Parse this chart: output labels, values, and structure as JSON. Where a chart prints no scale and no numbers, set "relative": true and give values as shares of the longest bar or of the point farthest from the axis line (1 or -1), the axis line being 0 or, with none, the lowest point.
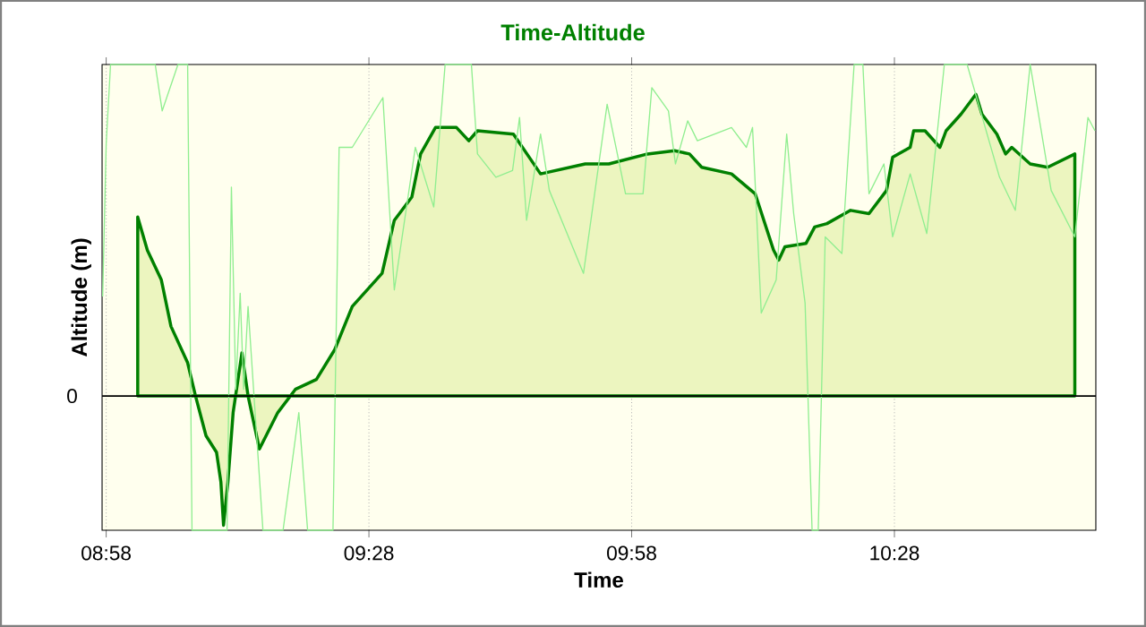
{
  "chart_data": {
    "type": "area",
    "title": "Time-Altitude",
    "xlabel": "Time",
    "ylabel": "Altitude (m)",
    "relative": true,
    "xlim": [
      8.9589,
      10.85
    ],
    "xticks": [
      {
        "value": 8.9667,
        "label": "08:58"
      },
      {
        "value": 9.4667,
        "label": "09:28"
      },
      {
        "value": 9.9667,
        "label": "09:58"
      },
      {
        "value": 10.4667,
        "label": "10:28"
      }
    ],
    "grid": "x",
    "ref_lines": [
      {
        "axis": "y",
        "value": 0,
        "label": "0",
        "color": "#000000"
      }
    ],
    "series": [
      {
        "color": "#008000",
        "x": [
          9.0267,
          9.045,
          9.0717,
          9.09,
          9.1217,
          9.1367,
          9.1567,
          9.1767,
          9.185,
          9.19,
          9.1983,
          9.2083,
          9.225,
          9.2367,
          9.2583,
          9.2933,
          9.3267,
          9.3667,
          9.4017,
          9.435,
          9.4917,
          9.515,
          9.5483,
          9.565,
          9.5933,
          9.6333,
          9.6567,
          9.6733,
          9.7417,
          9.7933,
          9.8783,
          9.9233,
          9.9967,
          10.0483,
          10.0767,
          10.1,
          10.1567,
          10.2017,
          10.2367,
          10.2467,
          10.2583,
          10.2983,
          10.315,
          10.3383,
          10.3833,
          10.4183,
          10.4517,
          10.4633,
          10.4967,
          10.5033,
          10.525,
          10.5533,
          10.565,
          10.5933,
          10.6217,
          10.6333,
          10.6617,
          10.6783,
          10.69,
          10.725,
          10.7583,
          10.81
        ],
        "values": [
          0.54,
          0.44,
          0.35,
          0.21,
          0.1,
          0,
          -0.12,
          -0.17,
          -0.26,
          -0.39,
          -0.26,
          -0.05,
          0.13,
          0,
          -0.16,
          -0.05,
          0.02,
          0.05,
          0.14,
          0.27,
          0.37,
          0.53,
          0.6,
          0.73,
          0.81,
          0.81,
          0.77,
          0.8,
          0.79,
          0.67,
          0.7,
          0.7,
          0.73,
          0.74,
          0.73,
          0.69,
          0.67,
          0.61,
          0.44,
          0.41,
          0.45,
          0.46,
          0.51,
          0.52,
          0.56,
          0.55,
          0.62,
          0.72,
          0.75,
          0.8,
          0.8,
          0.75,
          0.8,
          0.85,
          0.91,
          0.85,
          0.79,
          0.73,
          0.75,
          0.7,
          0.69,
          0.73
        ]
      },
      {
        "type": "line",
        "color": "#90ee90",
        "x": [
          8.96,
          8.9667,
          8.975,
          9.06,
          9.0733,
          9.1033,
          9.1217,
          9.13,
          9.1967,
          9.205,
          9.2133,
          9.2217,
          9.2283,
          9.2367,
          9.265,
          9.3033,
          9.3333,
          9.35,
          9.3983,
          9.41,
          9.435,
          9.4933,
          9.515,
          9.555,
          9.59,
          9.6117,
          9.6617,
          9.6733,
          9.7083,
          9.74,
          9.7533,
          9.7667,
          9.7933,
          9.81,
          9.875,
          9.92,
          9.955,
          9.9883,
          10.005,
          10.0367,
          10.05,
          10.0733,
          10.0917,
          10.1567,
          10.185,
          10.1967,
          10.2133,
          10.2417,
          10.2617,
          10.275,
          10.2967,
          10.31,
          10.3217,
          10.335,
          10.3667,
          10.39,
          10.4067,
          10.4183,
          10.4467,
          10.4633,
          10.4967,
          10.5283,
          10.5617,
          10.605,
          10.6667,
          10.6967,
          10.725,
          10.765,
          10.81,
          10.835,
          10.8483
        ],
        "values": [
          0.3,
          0.76,
          1,
          1,
          0.86,
          1,
          1,
          -0.405,
          -0.405,
          0.63,
          0.02,
          0.31,
          0.02,
          0.27,
          -0.405,
          -0.405,
          -0.05,
          -0.405,
          -0.405,
          0.75,
          0.75,
          0.9,
          0.32,
          0.75,
          0.57,
          1,
          1,
          0.73,
          0.66,
          0.68,
          0.84,
          0.53,
          0.79,
          0.62,
          0.37,
          0.88,
          0.61,
          0.61,
          0.93,
          0.86,
          0.7,
          0.83,
          0.77,
          0.81,
          0.75,
          0.81,
          0.25,
          0.35,
          0.79,
          0.55,
          0.28,
          -0.405,
          -0.405,
          0.48,
          0.43,
          1,
          1,
          0.61,
          0.7,
          0.48,
          0.67,
          0.49,
          1,
          1,
          0.66,
          0.56,
          1,
          0.62,
          0.48,
          0.84,
          0.8
        ]
      }
    ]
  }
}
